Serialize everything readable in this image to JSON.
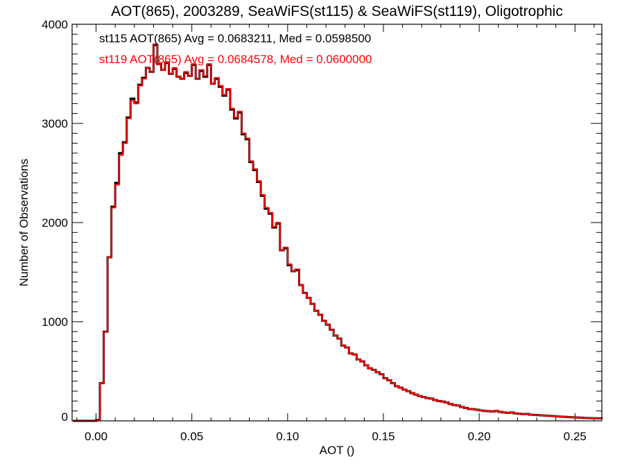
{
  "chart_data": {
    "type": "histogram",
    "title": "AOT(865), 2003289, SeaWiFS(st115) & SeaWiFS(st119), Oligotrophic",
    "xlabel": "AOT ()",
    "ylabel": "Number of Observations",
    "xlim": [
      -0.0125,
      0.264
    ],
    "ylim": [
      0,
      4000
    ],
    "xticks": [
      0.0,
      0.05,
      0.1,
      0.15,
      0.2,
      0.25
    ],
    "xtick_labels": [
      "0.00",
      "0.05",
      "0.10",
      "0.15",
      "0.20",
      "0.25"
    ],
    "yticks": [
      0,
      1000,
      2000,
      3000,
      4000
    ],
    "ytick_labels": [
      "0",
      "1000",
      "2000",
      "3000",
      "4000"
    ],
    "bin_start": -0.012,
    "bin_width": 0.002,
    "legend_position": "top-left",
    "series": [
      {
        "name": "st115",
        "color": "#000000",
        "annotation": "st115 AOT(865) Avg = 0.0683211, Med = 0.0598500",
        "values": [
          0,
          0,
          0,
          0,
          0,
          0,
          10,
          380,
          900,
          1650,
          2160,
          2400,
          2700,
          2810,
          3060,
          3250,
          3210,
          3390,
          3460,
          3560,
          3520,
          3790,
          3600,
          3540,
          3610,
          3500,
          3550,
          3470,
          3450,
          3510,
          3480,
          3590,
          3450,
          3530,
          3470,
          3590,
          3400,
          3450,
          3370,
          3280,
          3340,
          3140,
          3050,
          3110,
          2890,
          2840,
          2610,
          2530,
          2410,
          2270,
          2140,
          2090,
          1950,
          1990,
          1720,
          1740,
          1570,
          1510,
          1520,
          1370,
          1290,
          1240,
          1180,
          1110,
          1070,
          1010,
          970,
          920,
          860,
          830,
          760,
          740,
          680,
          670,
          620,
          600,
          560,
          530,
          515,
          490,
          470,
          430,
          410,
          380,
          350,
          335,
          315,
          300,
          280,
          265,
          250,
          240,
          230,
          225,
          210,
          200,
          195,
          185,
          170,
          160,
          155,
          140,
          130,
          120,
          118,
          112,
          105,
          100,
          98,
          95,
          100,
          90,
          85,
          80,
          85,
          75,
          72,
          68,
          70,
          62,
          60,
          58,
          55,
          52,
          50,
          48,
          45,
          42,
          40,
          38,
          36,
          34,
          32,
          30,
          28,
          27,
          26,
          25,
          24
        ]
      },
      {
        "name": "st119",
        "color": "#ff0000",
        "annotation": "st119 AOT(865) Avg = 0.0684578, Med = 0.0600000",
        "values": [
          0,
          0,
          0,
          0,
          0,
          0,
          10,
          380,
          900,
          1650,
          2150,
          2380,
          2680,
          2800,
          3050,
          3230,
          3200,
          3380,
          3450,
          3560,
          3520,
          3800,
          3600,
          3540,
          3620,
          3500,
          3560,
          3470,
          3450,
          3520,
          3480,
          3600,
          3450,
          3540,
          3480,
          3600,
          3400,
          3460,
          3380,
          3290,
          3350,
          3150,
          3060,
          3120,
          2900,
          2850,
          2620,
          2540,
          2420,
          2280,
          2150,
          2100,
          1960,
          2000,
          1720,
          1750,
          1580,
          1510,
          1530,
          1370,
          1290,
          1240,
          1180,
          1110,
          1070,
          1010,
          970,
          920,
          860,
          830,
          760,
          740,
          680,
          670,
          620,
          600,
          560,
          530,
          515,
          490,
          470,
          430,
          410,
          380,
          350,
          335,
          315,
          300,
          280,
          265,
          250,
          240,
          230,
          225,
          210,
          200,
          195,
          185,
          170,
          160,
          155,
          140,
          130,
          120,
          118,
          112,
          105,
          100,
          98,
          95,
          100,
          90,
          85,
          80,
          85,
          75,
          72,
          68,
          70,
          62,
          60,
          58,
          55,
          52,
          50,
          48,
          45,
          42,
          40,
          38,
          36,
          34,
          32,
          30,
          28,
          27,
          26,
          25,
          24
        ]
      }
    ]
  }
}
